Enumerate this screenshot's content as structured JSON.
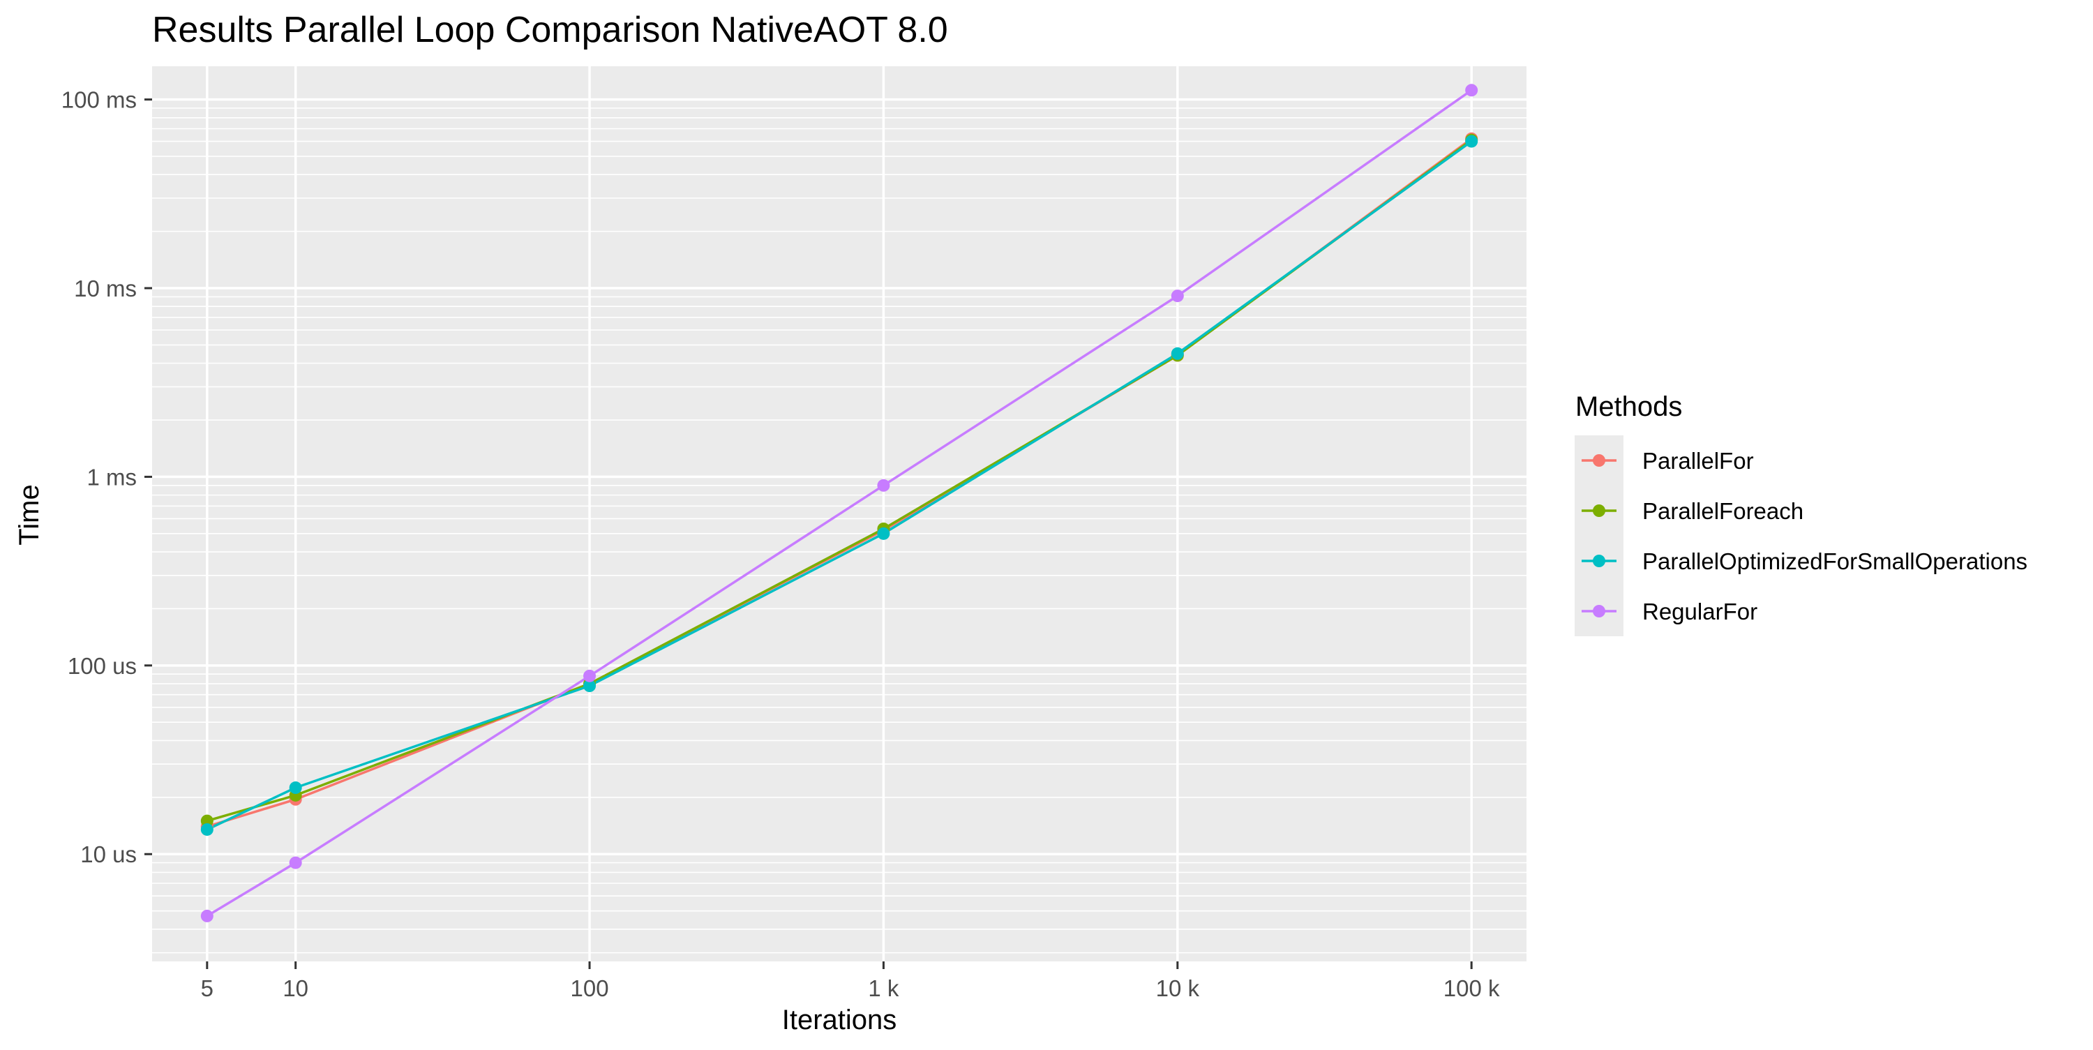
{
  "chart_data": {
    "type": "line",
    "title": "Results Parallel Loop Comparison  NativeAOT 8.0",
    "xlabel": "Iterations",
    "ylabel": "Time",
    "x_scale": "log10",
    "y_scale": "log10",
    "x": [
      5,
      10,
      100,
      1000,
      10000,
      100000
    ],
    "x_tick_values": [
      5,
      10,
      100,
      1000,
      10000,
      100000
    ],
    "x_tick_labels": [
      "5",
      "10",
      "100",
      "1 k",
      "10 k",
      "100 k"
    ],
    "y_unit": "ms",
    "y_tick_values": [
      0.01,
      0.1,
      1,
      10,
      100
    ],
    "y_tick_labels": [
      "10 us",
      "100 us",
      "1 ms",
      "10 ms",
      "100 ms"
    ],
    "xlim": [
      3.25,
      153846
    ],
    "ylim": [
      0.0027,
      150
    ],
    "grid": true,
    "legend": {
      "title": "Methods",
      "position": "right"
    },
    "series": [
      {
        "name": "ParallelFor",
        "color": "#F8766D",
        "values": [
          0.014,
          0.0195,
          0.08,
          0.52,
          4.4,
          62
        ]
      },
      {
        "name": "ParallelForeach",
        "color": "#7CAE00",
        "values": [
          0.015,
          0.0205,
          0.08,
          0.53,
          4.4,
          61
        ]
      },
      {
        "name": "ParallelOptimizedForSmallOperations",
        "color": "#00BFC4",
        "values": [
          0.0135,
          0.0225,
          0.078,
          0.5,
          4.5,
          60
        ]
      },
      {
        "name": "RegularFor",
        "color": "#C77CFF",
        "values": [
          0.0047,
          0.009,
          0.088,
          0.9,
          9.1,
          112
        ]
      }
    ]
  }
}
